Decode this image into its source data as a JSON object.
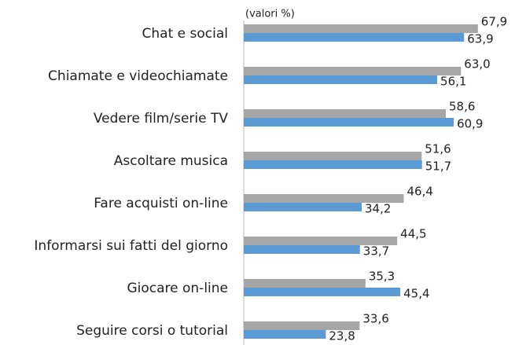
{
  "chart_data": {
    "type": "hbar",
    "subtitle": "(valori %)",
    "categories": [
      "Chat e social",
      "Chiamate e videochiamate",
      "Vedere film/serie TV",
      "Ascoltare musica",
      "Fare acquisti on-line",
      "Informarsi sui fatti del giorno",
      "Giocare on-line",
      "Seguire corsi o tutorial"
    ],
    "series": [
      {
        "color": "#a6a6a6",
        "values": [
          67.9,
          63.0,
          58.6,
          51.6,
          46.4,
          44.5,
          35.3,
          33.6
        ],
        "value_labels": [
          "67,9",
          "63,0",
          "58,6",
          "51,6",
          "46,4",
          "44,5",
          "35,3",
          "33,6"
        ]
      },
      {
        "color": "#5b9bd5",
        "values": [
          63.9,
          56.1,
          60.9,
          51.7,
          34.2,
          33.7,
          45.4,
          23.8
        ],
        "value_labels": [
          "63,9",
          "56,1",
          "60,9",
          "51,7",
          "34,2",
          "33,7",
          "45,4",
          "23,8"
        ]
      }
    ],
    "xlim": [
      0,
      70
    ]
  }
}
